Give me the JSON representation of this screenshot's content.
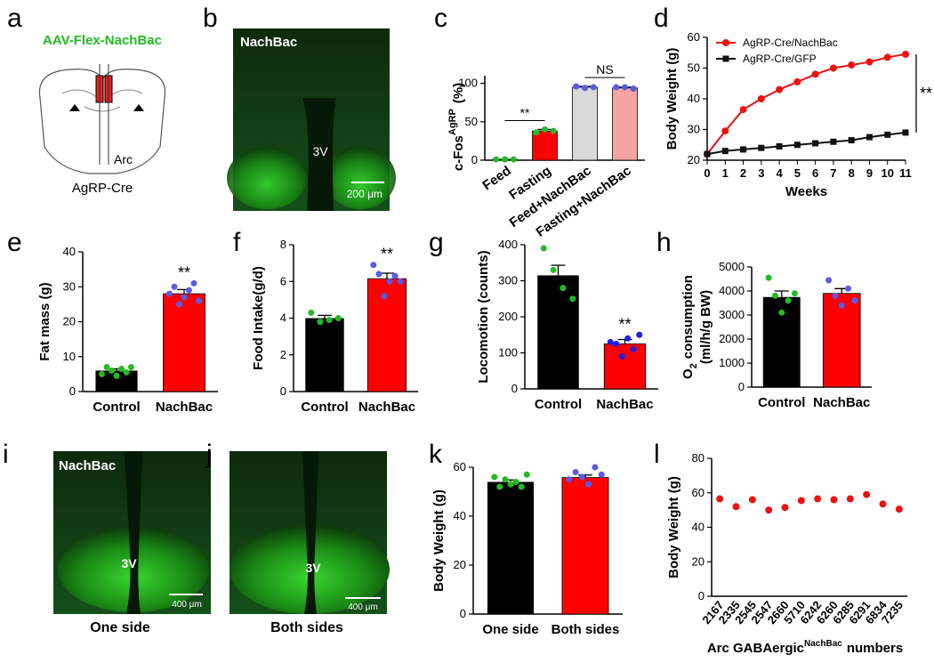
{
  "panels": {
    "a": {
      "letter": "a",
      "virus": "AAV-Flex-NachBac",
      "region": "Arc",
      "mouse": "AgRP-Cre"
    },
    "b": {
      "letter": "b",
      "name": "NachBac",
      "ventricle": "3V",
      "scale": "200 μm"
    },
    "i": {
      "letter": "i",
      "name": "NachBac",
      "ventricle": "3V",
      "scale": "400 μm",
      "caption": "One side"
    },
    "j": {
      "letter": "j",
      "ventricle": "3V",
      "scale": "400 μm",
      "caption": "Both sides"
    }
  },
  "chart_data": [
    {
      "type": "bar",
      "panel": "c",
      "ylabel": "c-Fos",
      "ylabel_sup": "AgRP",
      "ylabel_unit": "(%)",
      "categories": [
        "Feed",
        "Fasting",
        "Feed+NachBac",
        "Fasting+NachBac"
      ],
      "values": [
        1,
        38,
        95,
        94
      ],
      "errors": [
        0,
        2,
        1,
        1
      ],
      "colors": [
        "#ffffff",
        "#ff0000",
        "#d9d9d9",
        "#f4a3a3"
      ],
      "point_colors": [
        "#22bb22",
        "#22bb22",
        "#5a5ae6",
        "#5a5ae6"
      ],
      "points": [
        [
          1,
          1,
          1
        ],
        [
          36,
          40,
          38
        ],
        [
          96,
          94,
          95
        ],
        [
          95,
          95,
          93
        ]
      ],
      "annotations": [
        "**",
        "NS"
      ],
      "ylim": [
        0,
        110
      ],
      "yticks": [
        0,
        50,
        100
      ]
    },
    {
      "type": "line",
      "panel": "d",
      "ylabel": "Body Weight (g)",
      "xlabel": "Weeks",
      "x": [
        0,
        1,
        2,
        3,
        4,
        5,
        6,
        7,
        8,
        9,
        10,
        11
      ],
      "xlim": [
        0,
        11
      ],
      "xticks": [
        0,
        1,
        2,
        3,
        4,
        5,
        6,
        7,
        8,
        9,
        10,
        11
      ],
      "ylim": [
        20,
        60
      ],
      "yticks": [
        20,
        30,
        40,
        50,
        60
      ],
      "legend": "upper left",
      "annotations": [
        "**"
      ],
      "series": [
        {
          "name": "AgRP-Cre/NachBac",
          "color": "#ee1111",
          "marker": "circle",
          "values": [
            22,
            29.5,
            36.5,
            40,
            43,
            45.5,
            48,
            50,
            51,
            52,
            53.5,
            54.5
          ]
        },
        {
          "name": "AgRP-Cre/GFP",
          "color": "#111111",
          "marker": "square",
          "values": [
            22,
            23,
            23.5,
            24,
            24.5,
            25,
            25.5,
            26,
            26.5,
            27.5,
            28.3,
            29
          ]
        }
      ]
    },
    {
      "type": "bar",
      "panel": "e",
      "ylabel": "Fat mass (g)",
      "categories": [
        "Control",
        "NachBac"
      ],
      "values": [
        6,
        28
      ],
      "errors": [
        0.5,
        1.2
      ],
      "colors": [
        "#000000",
        "#ff0000"
      ],
      "point_colors": [
        "#22bb22",
        "#5a5ae6"
      ],
      "points": [
        [
          5,
          7,
          6,
          4.5,
          6.5,
          5.5,
          7
        ],
        [
          28,
          30,
          25,
          27,
          29,
          31,
          26
        ]
      ],
      "annotations": [
        "**"
      ],
      "ylim": [
        0,
        40
      ],
      "yticks": [
        0,
        10,
        20,
        30,
        40
      ]
    },
    {
      "type": "bar",
      "panel": "f",
      "ylabel": "Food Intake(g/d)",
      "categories": [
        "Control",
        "NachBac"
      ],
      "values": [
        4.0,
        6.15
      ],
      "errors": [
        0.15,
        0.3
      ],
      "colors": [
        "#000000",
        "#ff0000"
      ],
      "point_colors": [
        "#22bb22",
        "#5a5ae6"
      ],
      "points": [
        [
          4.3,
          3.8,
          3.9,
          4.0
        ],
        [
          6.9,
          6.4,
          5.2,
          6.0,
          6.3,
          6.0
        ]
      ],
      "annotations": [
        "**"
      ],
      "ylim": [
        0,
        8
      ],
      "yticks": [
        0,
        2,
        4,
        6,
        8
      ]
    },
    {
      "type": "bar",
      "panel": "g",
      "ylabel": "Locomotion (counts)",
      "categories": [
        "Control",
        "NachBac"
      ],
      "values": [
        315,
        125
      ],
      "errors": [
        28,
        12
      ],
      "colors": [
        "#000000",
        "#ff0000"
      ],
      "point_colors": [
        "#22bb22",
        "#1f1fe0"
      ],
      "points": [
        [
          390,
          330,
          280,
          250
        ],
        [
          130,
          125,
          90,
          140,
          110,
          150
        ]
      ],
      "annotations": [
        "**"
      ],
      "ylim": [
        0,
        400
      ],
      "yticks": [
        0,
        100,
        200,
        300,
        400
      ]
    },
    {
      "type": "bar",
      "panel": "h",
      "ylabel": "O",
      "ylabel_sub": "2",
      "ylabel_end": "consumption",
      "ylabel_unit": "(ml/h/g BW)",
      "categories": [
        "Control",
        "NachBac"
      ],
      "values": [
        3750,
        3900
      ],
      "errors": [
        250,
        200
      ],
      "colors": [
        "#000000",
        "#ff0000"
      ],
      "point_colors": [
        "#22bb22",
        "#5a5ae6"
      ],
      "points": [
        [
          4550,
          3800,
          3100,
          3600,
          3900
        ],
        [
          4450,
          3800,
          3400,
          4100,
          3600
        ]
      ],
      "ylim": [
        0,
        5000
      ],
      "yticks": [
        0,
        1000,
        2000,
        3000,
        4000,
        5000
      ]
    },
    {
      "type": "bar",
      "panel": "k",
      "ylabel": "Body Weight (g)",
      "categories": [
        "One side",
        "Both sides"
      ],
      "values": [
        54,
        55.8
      ],
      "errors": [
        0.8,
        1.0
      ],
      "colors": [
        "#000000",
        "#ff0000"
      ],
      "point_colors": [
        "#22bb22",
        "#5a5ae6"
      ],
      "points": [
        [
          56,
          52,
          55,
          53,
          54,
          52,
          57
        ],
        [
          55,
          58,
          56,
          53,
          60,
          57
        ]
      ],
      "ylim": [
        0,
        60
      ],
      "yticks": [
        0,
        20,
        40,
        60
      ]
    },
    {
      "type": "scatter",
      "panel": "l",
      "ylabel": "Body Weight (g)",
      "xlabel": "Arc GABAergic",
      "xlabel_sup": "NachBac",
      "xlabel_end": "numbers",
      "categories": [
        "2167",
        "2335",
        "2545",
        "2547",
        "2660",
        "5710",
        "6242",
        "6260",
        "6285",
        "6291",
        "6834",
        "7235"
      ],
      "values": [
        56.5,
        52,
        56,
        50,
        51.5,
        55.5,
        56.5,
        56,
        56.5,
        59,
        53.5,
        50.5
      ],
      "color": "#ee1111",
      "ylim": [
        0,
        80
      ],
      "yticks": [
        0,
        20,
        40,
        60,
        80
      ]
    }
  ]
}
